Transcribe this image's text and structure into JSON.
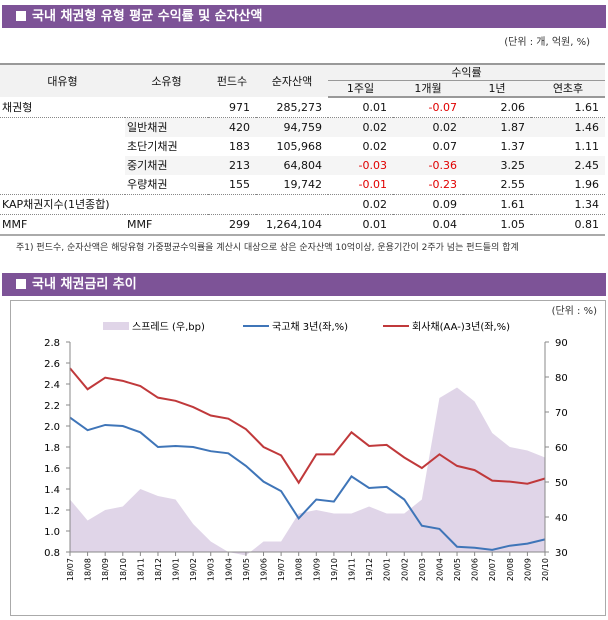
{
  "section1": {
    "title": "국내 채권형 유형 평균 수익률 및 순자산액",
    "unit": "(단위 : 개, 억원, %)",
    "headers": {
      "major": "대유형",
      "minor": "소유형",
      "funds": "펀드수",
      "aum": "순자산액",
      "returns": "수익률",
      "w1": "1주일",
      "m1": "1개월",
      "y1": "1년",
      "ytd": "연초후"
    },
    "rows": [
      {
        "major": "채권형",
        "minor": "",
        "funds": "971",
        "aum": "285,273",
        "w1": "0.01",
        "m1": "-0.07",
        "y1": "2.06",
        "ytd": "1.61"
      },
      {
        "major": "",
        "minor": "일반채권",
        "funds": "420",
        "aum": "94,759",
        "w1": "0.02",
        "m1": "0.02",
        "y1": "1.87",
        "ytd": "1.46"
      },
      {
        "major": "",
        "minor": "초단기채권",
        "funds": "183",
        "aum": "105,968",
        "w1": "0.02",
        "m1": "0.07",
        "y1": "1.37",
        "ytd": "1.11"
      },
      {
        "major": "",
        "minor": "중기채권",
        "funds": "213",
        "aum": "64,804",
        "w1": "-0.03",
        "m1": "-0.36",
        "y1": "3.25",
        "ytd": "2.45"
      },
      {
        "major": "",
        "minor": "우량채권",
        "funds": "155",
        "aum": "19,742",
        "w1": "-0.01",
        "m1": "-0.23",
        "y1": "2.55",
        "ytd": "1.96"
      },
      {
        "major": "KAP채권지수(1년종합)",
        "minor": "",
        "funds": "",
        "aum": "",
        "w1": "0.02",
        "m1": "0.09",
        "y1": "1.61",
        "ytd": "1.34"
      },
      {
        "major": "MMF",
        "minor": "MMF",
        "funds": "299",
        "aum": "1,264,104",
        "w1": "0.01",
        "m1": "0.04",
        "y1": "1.05",
        "ytd": "0.81"
      }
    ],
    "note": "주1) 펀드수, 순자산액은 해당유형 가중평균수익률을 계산시 대상으로 삼은 순자산액 10억이상, 운용기간이 2주가 넘는 펀드들의 합계"
  },
  "section2": {
    "title": "국내 채권금리 추이"
  },
  "colors": {
    "header": "#7d5397",
    "negative": "#e00000",
    "spread": "#e0d5e8",
    "govt": "#3f75b8",
    "corp": "#c0393b"
  },
  "chart_data": {
    "type": "line",
    "unit": "(단위 : %)",
    "categories": [
      "18/07",
      "18/08",
      "18/09",
      "18/10",
      "18/11",
      "18/12",
      "19/01",
      "19/02",
      "19/03",
      "19/04",
      "19/05",
      "19/06",
      "19/07",
      "19/08",
      "19/09",
      "19/10",
      "19/11",
      "19/12",
      "20/01",
      "20/02",
      "20/03",
      "20/04",
      "20/05",
      "20/06",
      "20/07",
      "20/08",
      "20/09",
      "20/10"
    ],
    "ylim_left": [
      0.8,
      2.8
    ],
    "yticks_left": [
      "0.8",
      "1.0",
      "1.2",
      "1.4",
      "1.6",
      "1.8",
      "2.0",
      "2.2",
      "2.4",
      "2.6",
      "2.8"
    ],
    "ylim_right": [
      30,
      90
    ],
    "yticks_right": [
      "30",
      "40",
      "50",
      "60",
      "70",
      "80",
      "90"
    ],
    "legend_position": "top",
    "series": [
      {
        "name": "스프레드 (우,bp)",
        "type": "area",
        "axis": "right",
        "values": [
          45,
          39,
          42,
          43,
          48,
          46,
          45,
          38,
          33,
          30,
          29,
          33,
          33,
          41,
          42,
          41,
          41,
          43,
          41,
          41,
          45,
          74,
          77,
          73,
          64,
          60,
          59,
          57
        ]
      },
      {
        "name": "국고채 3년(좌,%)",
        "type": "line",
        "axis": "left",
        "values": [
          2.08,
          1.96,
          2.01,
          2.0,
          1.94,
          1.8,
          1.81,
          1.8,
          1.76,
          1.74,
          1.62,
          1.47,
          1.38,
          1.12,
          1.3,
          1.28,
          1.52,
          1.41,
          1.42,
          1.3,
          1.05,
          1.02,
          0.85,
          0.84,
          0.82,
          0.86,
          0.88,
          0.92
        ]
      },
      {
        "name": "회사채(AA-)3년(좌,%)",
        "type": "line",
        "axis": "left",
        "values": [
          2.55,
          2.35,
          2.46,
          2.43,
          2.38,
          2.27,
          2.24,
          2.18,
          2.1,
          2.07,
          1.97,
          1.8,
          1.72,
          1.46,
          1.73,
          1.73,
          1.94,
          1.81,
          1.82,
          1.7,
          1.6,
          1.73,
          1.62,
          1.58,
          1.48,
          1.47,
          1.45,
          1.5
        ]
      }
    ]
  }
}
